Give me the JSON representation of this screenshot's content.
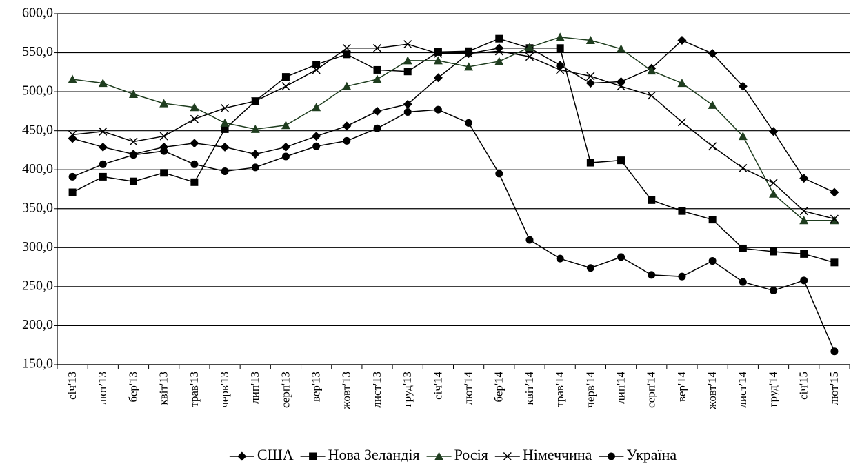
{
  "chart_data": {
    "type": "line",
    "categories": [
      "січ'13",
      "лют'13",
      "бер'13",
      "квіт'13",
      "трав'13",
      "черв'13",
      "лип'13",
      "серп'13",
      "вер'13",
      "жовт'13",
      "лист'13",
      "груд'13",
      "січ'14",
      "лют'14",
      "бер'14",
      "квіт'14",
      "трав'14",
      "черв'14",
      "лип'14",
      "серп'14",
      "вер'14",
      "жовт'14",
      "лист'14",
      "груд'14",
      "січ'15",
      "лют'15"
    ],
    "series": [
      {
        "name": "США",
        "color": "#000000",
        "marker": "diamond",
        "values": [
          440,
          429,
          420,
          429,
          434,
          429,
          420,
          429,
          443,
          456,
          475,
          484,
          518,
          549,
          556,
          556,
          534,
          511,
          513,
          530,
          566,
          549,
          507,
          449,
          389,
          371
        ]
      },
      {
        "name": "Нова Зеландія",
        "color": "#000000",
        "marker": "square",
        "values": [
          371,
          391,
          385,
          396,
          384,
          452,
          488,
          519,
          535,
          548,
          528,
          526,
          551,
          552,
          568,
          556,
          556,
          409,
          412,
          361,
          347,
          336,
          299,
          295,
          292,
          281
        ]
      },
      {
        "name": "Росія",
        "color": "#1f3d1f",
        "marker": "triangle",
        "values": [
          516,
          511,
          497,
          485,
          480,
          460,
          452,
          457,
          480,
          507,
          516,
          540,
          540,
          532,
          539,
          557,
          570,
          566,
          555,
          527,
          511,
          483,
          443,
          369,
          335,
          335
        ]
      },
      {
        "name": "Німеччина",
        "color": "#000000",
        "marker": "x",
        "values": [
          445,
          449,
          436,
          443,
          465,
          479,
          488,
          507,
          528,
          556,
          556,
          561,
          549,
          549,
          552,
          545,
          528,
          520,
          507,
          495,
          461,
          430,
          402,
          383,
          347,
          337
        ]
      },
      {
        "name": "Україна",
        "color": "#000000",
        "marker": "circle",
        "values": [
          391,
          407,
          419,
          424,
          407,
          398,
          403,
          417,
          430,
          437,
          453,
          474,
          477,
          460,
          395,
          310,
          286,
          274,
          288,
          265,
          263,
          283,
          256,
          245,
          258,
          167
        ]
      }
    ],
    "ylim": [
      150,
      600
    ],
    "yticks": [
      {
        "value": 150,
        "label": "150,0"
      },
      {
        "value": 200,
        "label": "200,0"
      },
      {
        "value": 250,
        "label": "250,0"
      },
      {
        "value": 300,
        "label": "300,0"
      },
      {
        "value": 350,
        "label": "350,0"
      },
      {
        "value": 400,
        "label": "400,0"
      },
      {
        "value": 450,
        "label": "450,0"
      },
      {
        "value": 500,
        "label": "500,0"
      },
      {
        "value": 550,
        "label": "550,0"
      },
      {
        "value": 600,
        "label": "600,0"
      }
    ],
    "grid": true,
    "legend": "bottom"
  }
}
